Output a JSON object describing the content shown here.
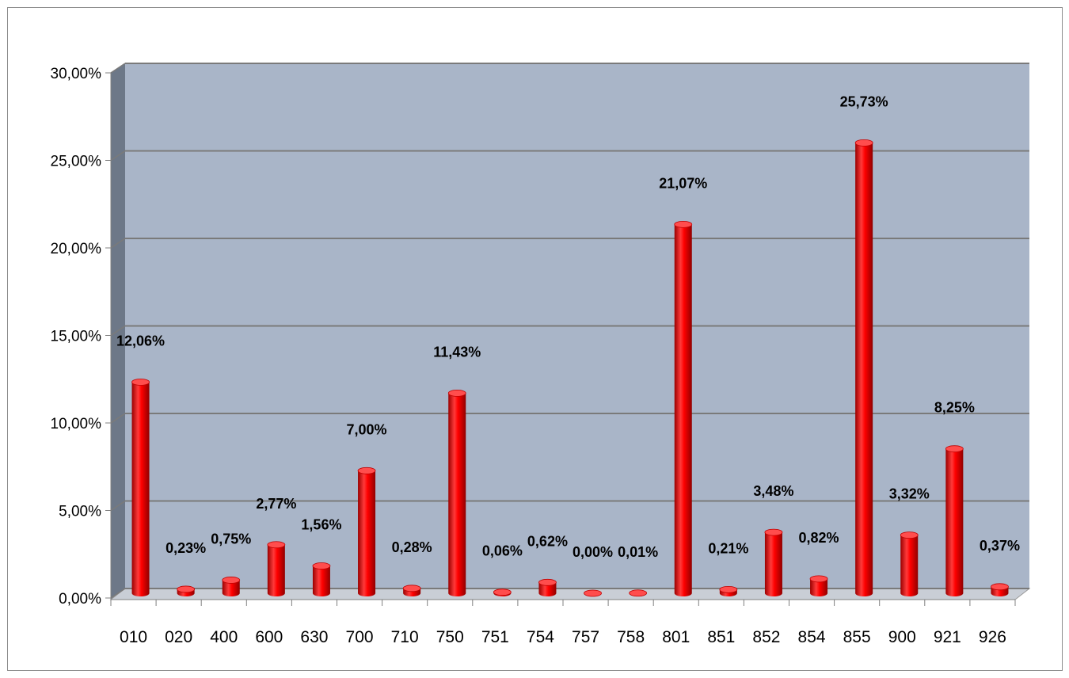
{
  "chart_data": {
    "type": "bar",
    "categories": [
      "010",
      "020",
      "400",
      "600",
      "630",
      "700",
      "710",
      "750",
      "751",
      "754",
      "757",
      "758",
      "801",
      "851",
      "852",
      "854",
      "855",
      "900",
      "921",
      "926"
    ],
    "values": [
      12.06,
      0.23,
      0.75,
      2.77,
      1.56,
      7.0,
      0.28,
      11.43,
      0.06,
      0.62,
      0.0,
      0.01,
      21.07,
      0.21,
      3.48,
      0.82,
      25.73,
      3.32,
      8.25,
      0.37
    ],
    "data_labels": [
      "12,06%",
      "0,23%",
      "0,75%",
      "2,77%",
      "1,56%",
      "7,00%",
      "0,28%",
      "11,43%",
      "0,06%",
      "0,62%",
      "0,00%",
      "0,01%",
      "21,07%",
      "0,21%",
      "3,48%",
      "0,82%",
      "25,73%",
      "3,32%",
      "8,25%",
      "0,37%"
    ],
    "y_ticks": [
      0,
      5,
      10,
      15,
      20,
      25,
      30
    ],
    "y_tick_labels": [
      "0,00%",
      "5,00%",
      "10,00%",
      "15,00%",
      "20,00%",
      "25,00%",
      "30,00%"
    ],
    "ylim": [
      0,
      30
    ],
    "grid": true,
    "legend": "none",
    "colors": {
      "bar": "#e00000",
      "bar_dark": "#8a0000",
      "bar_light": "#ff6a6a",
      "plot_back": "#a9b5c8",
      "side_wall": "#6d7888",
      "grid": "#7a7a7a"
    }
  }
}
